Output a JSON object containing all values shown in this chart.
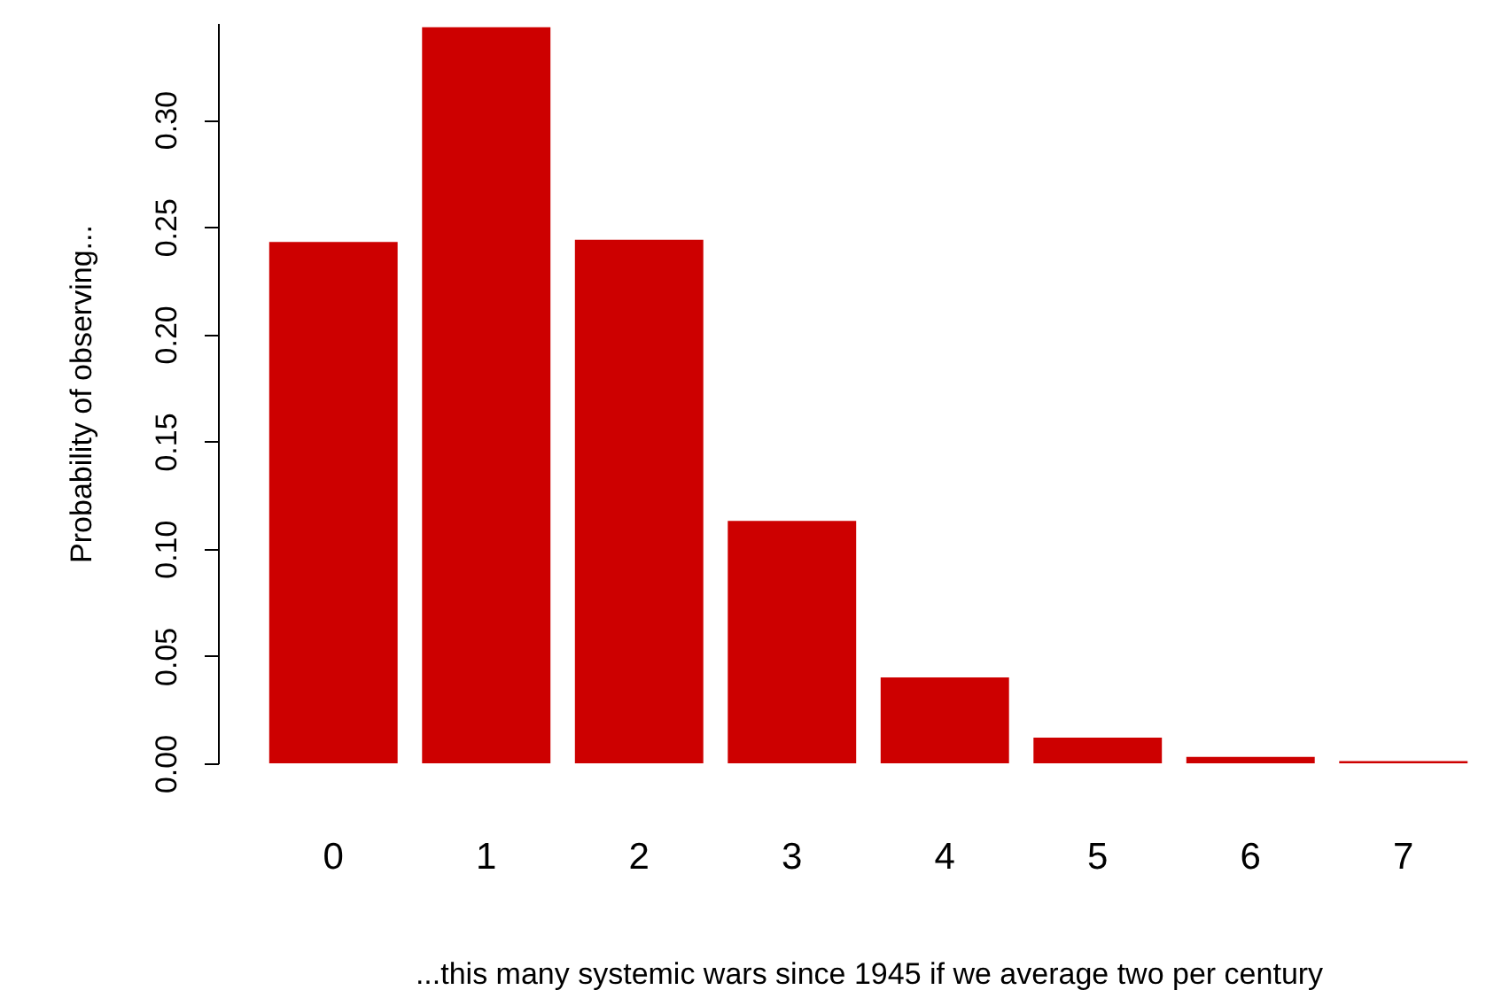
{
  "chart_data": {
    "type": "bar",
    "xlabel": "...this many systemic wars since 1945 if we average two per century",
    "ylabel": "Probability of observing...",
    "categories": [
      "0",
      "1",
      "2",
      "3",
      "4",
      "5",
      "6",
      "7"
    ],
    "values": [
      0.243,
      0.343,
      0.244,
      0.113,
      0.04,
      0.012,
      0.003,
      0.001
    ],
    "color": "#cd0000",
    "ylim": [
      0,
      0.345
    ],
    "yticks": [
      {
        "value": 0,
        "label": "0.00"
      },
      {
        "value": 0.05,
        "label": "0.05"
      },
      {
        "value": 0.1,
        "label": "0.10"
      },
      {
        "value": 0.15,
        "label": "0.15"
      },
      {
        "value": 0.2,
        "label": "0.20"
      },
      {
        "value": 0.25,
        "label": "0.25"
      },
      {
        "value": 0.3,
        "label": "0.30"
      }
    ],
    "grid": false
  }
}
